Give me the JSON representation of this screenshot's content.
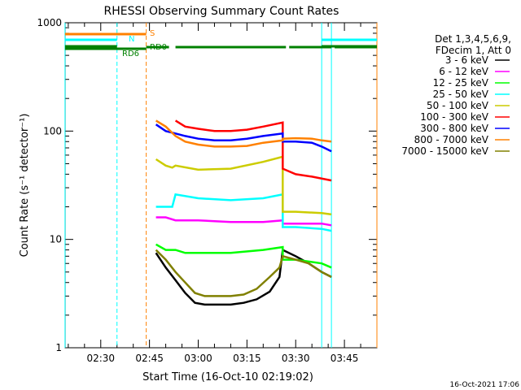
{
  "chart_data": {
    "type": "line",
    "title": "RHESSI Observing Summary Count Rates",
    "xlabel": "Start Time (16-Oct-10 02:19:02)",
    "ylabel": "Count Rate (s⁻¹ detector⁻¹)",
    "y_scale": "log",
    "ylim": [
      1,
      1000
    ],
    "xlim": [
      "02:19:02",
      "03:55:00"
    ],
    "x_ticks": [
      "02:30",
      "02:45",
      "03:00",
      "03:15",
      "03:30",
      "03:45"
    ],
    "y_ticks": [
      "1",
      "10",
      "100",
      "1000"
    ],
    "footer_date": "16-Oct-2021 17:06",
    "legend_header": [
      "Det 1,3,4,5,6,9,",
      "FDecim 1, Att 0"
    ],
    "series": [
      {
        "name": "3 - 6 keV",
        "color": "#000000",
        "points": [
          [
            "02:47",
            7.5
          ],
          [
            "02:50",
            5.5
          ],
          [
            "02:53",
            4.2
          ],
          [
            "02:56",
            3.2
          ],
          [
            "02:59",
            2.6
          ],
          [
            "03:02",
            2.5
          ],
          [
            "03:06",
            2.5
          ],
          [
            "03:10",
            2.5
          ],
          [
            "03:14",
            2.6
          ],
          [
            "03:18",
            2.8
          ],
          [
            "03:22",
            3.3
          ],
          [
            "03:25",
            4.5
          ],
          [
            "03:26",
            8
          ],
          [
            "03:30",
            7
          ],
          [
            "03:34",
            6
          ],
          [
            "03:38",
            5
          ],
          [
            "03:41",
            4.5
          ]
        ]
      },
      {
        "name": "6 - 12 keV",
        "color": "#ff00ff",
        "points": [
          [
            "02:47",
            16
          ],
          [
            "02:50",
            16
          ],
          [
            "02:53",
            15
          ],
          [
            "03:00",
            15
          ],
          [
            "03:10",
            14.5
          ],
          [
            "03:20",
            14.5
          ],
          [
            "03:26",
            15
          ],
          [
            "03:26",
            14
          ],
          [
            "03:30",
            14
          ],
          [
            "03:38",
            14
          ],
          [
            "03:41",
            13.5
          ]
        ]
      },
      {
        "name": "12 - 25 keV",
        "color": "#00ff00",
        "points": [
          [
            "02:47",
            9
          ],
          [
            "02:50",
            8
          ],
          [
            "02:53",
            8
          ],
          [
            "02:56",
            7.5
          ],
          [
            "03:00",
            7.5
          ],
          [
            "03:10",
            7.5
          ],
          [
            "03:20",
            8
          ],
          [
            "03:26",
            8.5
          ],
          [
            "03:26",
            6.5
          ],
          [
            "03:30",
            6.5
          ],
          [
            "03:38",
            6
          ],
          [
            "03:41",
            5.5
          ]
        ]
      },
      {
        "name": "25 - 50 keV",
        "color": "#00ffff",
        "points": [
          [
            "02:47",
            20
          ],
          [
            "02:50",
            20
          ],
          [
            "02:52",
            20
          ],
          [
            "02:53",
            26
          ],
          [
            "03:00",
            24
          ],
          [
            "03:10",
            23
          ],
          [
            "03:20",
            24
          ],
          [
            "03:26",
            26
          ],
          [
            "03:26",
            13
          ],
          [
            "03:30",
            13
          ],
          [
            "03:38",
            12.5
          ],
          [
            "03:41",
            12
          ]
        ]
      },
      {
        "name": "50 - 100 keV",
        "color": "#cccc00",
        "points": [
          [
            "02:47",
            55
          ],
          [
            "02:50",
            48
          ],
          [
            "02:52",
            46
          ],
          [
            "02:53",
            48
          ],
          [
            "03:00",
            44
          ],
          [
            "03:10",
            45
          ],
          [
            "03:20",
            52
          ],
          [
            "03:26",
            58
          ],
          [
            "03:26",
            18
          ],
          [
            "03:30",
            18
          ],
          [
            "03:38",
            17.5
          ],
          [
            "03:41",
            17
          ]
        ]
      },
      {
        "name": "100 - 300 keV",
        "color": "#ff0000",
        "points": [
          [
            "02:53",
            125
          ],
          [
            "02:56",
            110
          ],
          [
            "03:00",
            105
          ],
          [
            "03:05",
            100
          ],
          [
            "03:10",
            100
          ],
          [
            "03:15",
            103
          ],
          [
            "03:20",
            110
          ],
          [
            "03:26",
            120
          ],
          [
            "03:26",
            45
          ],
          [
            "03:30",
            40
          ],
          [
            "03:35",
            38
          ],
          [
            "03:41",
            35
          ]
        ]
      },
      {
        "name": "300 - 800 keV",
        "color": "#0000ff",
        "points": [
          [
            "02:47",
            115
          ],
          [
            "02:50",
            100
          ],
          [
            "02:53",
            95
          ],
          [
            "02:56",
            90
          ],
          [
            "03:00",
            85
          ],
          [
            "03:05",
            82
          ],
          [
            "03:10",
            82
          ],
          [
            "03:15",
            85
          ],
          [
            "03:20",
            90
          ],
          [
            "03:26",
            95
          ],
          [
            "03:26",
            80
          ],
          [
            "03:30",
            80
          ],
          [
            "03:35",
            78
          ],
          [
            "03:38",
            72
          ],
          [
            "03:41",
            65
          ]
        ]
      },
      {
        "name": "800 - 7000 keV",
        "color": "#ff8000",
        "points": [
          [
            "02:47",
            125
          ],
          [
            "02:50",
            110
          ],
          [
            "02:53",
            90
          ],
          [
            "02:56",
            80
          ],
          [
            "03:00",
            75
          ],
          [
            "03:05",
            72
          ],
          [
            "03:10",
            72
          ],
          [
            "03:15",
            73
          ],
          [
            "03:20",
            78
          ],
          [
            "03:26",
            82
          ],
          [
            "03:26",
            85
          ],
          [
            "03:30",
            86
          ],
          [
            "03:35",
            85
          ],
          [
            "03:38",
            82
          ],
          [
            "03:41",
            80
          ]
        ]
      },
      {
        "name": "7000 - 15000 keV",
        "color": "#808000",
        "points": [
          [
            "02:47",
            8
          ],
          [
            "02:50",
            6.5
          ],
          [
            "02:53",
            5
          ],
          [
            "02:56",
            4
          ],
          [
            "02:59",
            3.2
          ],
          [
            "03:02",
            3
          ],
          [
            "03:06",
            3
          ],
          [
            "03:10",
            3
          ],
          [
            "03:14",
            3.1
          ],
          [
            "03:18",
            3.5
          ],
          [
            "03:22",
            4.5
          ],
          [
            "03:25",
            5.5
          ],
          [
            "03:26",
            7
          ],
          [
            "03:30",
            6.5
          ],
          [
            "03:34",
            6
          ],
          [
            "03:38",
            5
          ],
          [
            "03:41",
            4.5
          ]
        ]
      }
    ],
    "flag_bars": [
      {
        "label": "S",
        "color": "#ff8000",
        "segments": [
          [
            "02:19",
            "02:44"
          ]
        ]
      },
      {
        "label": "N",
        "color": "#00ffff",
        "segments": [
          [
            "02:19",
            "02:35"
          ],
          [
            "03:38",
            "03:55"
          ]
        ]
      },
      {
        "label": "",
        "color": "#008000",
        "segments": [
          [
            "02:19",
            "02:35"
          ],
          [
            "03:38",
            "03:55"
          ]
        ]
      },
      {
        "label": "RD6",
        "color": "#008000",
        "segments": [
          [
            "02:19",
            "02:44"
          ]
        ]
      },
      {
        "label": "RD0",
        "color": "#008000",
        "segments": [
          [
            "02:44",
            "02:51"
          ],
          [
            "02:53",
            "03:27"
          ],
          [
            "03:28",
            "03:41"
          ],
          [
            "03:42",
            "03:55"
          ]
        ]
      }
    ],
    "vertical_markers": [
      {
        "time": "02:19",
        "color": "#00ffff",
        "style": "solid"
      },
      {
        "time": "02:35",
        "color": "#00ffff",
        "style": "dashed"
      },
      {
        "time": "02:44",
        "color": "#ff8000",
        "style": "dashed"
      },
      {
        "time": "03:38",
        "color": "#00ffff",
        "style": "solid"
      },
      {
        "time": "03:41",
        "color": "#00ffff",
        "style": "solid"
      },
      {
        "time": "03:55",
        "color": "#ff8000",
        "style": "solid"
      }
    ]
  }
}
